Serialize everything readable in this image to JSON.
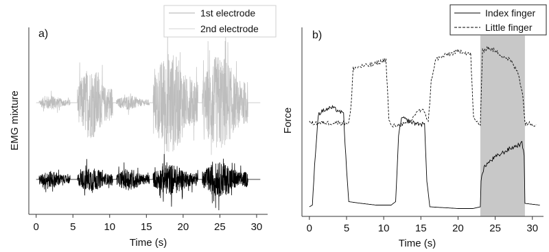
{
  "chart_data": [
    {
      "type": "line",
      "panel_label": "a)",
      "xlabel": "Time (s)",
      "ylabel": "EMG mixture",
      "xlim": [
        -1,
        31.5
      ],
      "xticks": [
        0,
        5,
        10,
        15,
        20,
        25,
        30
      ],
      "grid": false,
      "legend": {
        "placement": "top-right",
        "entries": [
          "1st electrode",
          "2nd electrode"
        ]
      },
      "series": [
        {
          "name": "1st electrode",
          "color": "#bdbdbd",
          "baseline": "upper",
          "segments": [
            {
              "start": 0.4,
              "end": 4.6,
              "amplitude": 0.12
            },
            {
              "start": 5.6,
              "end": 10.4,
              "amplitude": 0.6
            },
            {
              "start": 10.9,
              "end": 15.4,
              "amplitude": 0.12
            },
            {
              "start": 15.9,
              "end": 22.0,
              "amplitude": 0.85
            },
            {
              "start": 22.6,
              "end": 28.8,
              "amplitude": 0.8
            }
          ]
        },
        {
          "name": "2nd electrode",
          "color": "#000000",
          "baseline": "lower",
          "segments": [
            {
              "start": 0.4,
              "end": 4.6,
              "amplitude": 0.25
            },
            {
              "start": 5.6,
              "end": 10.4,
              "amplitude": 0.35
            },
            {
              "start": 10.9,
              "end": 15.4,
              "amplitude": 0.32
            },
            {
              "start": 15.9,
              "end": 22.0,
              "amplitude": 0.45
            },
            {
              "start": 22.6,
              "end": 28.8,
              "amplitude": 0.5
            }
          ]
        }
      ]
    },
    {
      "type": "line",
      "panel_label": "b)",
      "xlabel": "Time (s)",
      "ylabel": "Force",
      "xlim": [
        -1,
        31.5
      ],
      "ylim": [
        0,
        1
      ],
      "xticks": [
        0,
        5,
        10,
        15,
        20,
        25,
        30
      ],
      "grid": false,
      "legend": {
        "placement": "top-right",
        "entries": [
          "Index finger",
          "Little finger"
        ]
      },
      "highlight": {
        "start": 23,
        "end": 29,
        "color": "#c8c8c8"
      },
      "series": [
        {
          "name": "Index finger",
          "color": "#000000",
          "dash": "solid",
          "points": [
            [
              0,
              0.04
            ],
            [
              0.4,
              0.05
            ],
            [
              0.8,
              0.35
            ],
            [
              1.2,
              0.58
            ],
            [
              1.8,
              0.6
            ],
            [
              3.0,
              0.62
            ],
            [
              4.0,
              0.6
            ],
            [
              4.6,
              0.58
            ],
            [
              5.0,
              0.25
            ],
            [
              5.3,
              0.07
            ],
            [
              7,
              0.06
            ],
            [
              9,
              0.05
            ],
            [
              11,
              0.05
            ],
            [
              11.6,
              0.07
            ],
            [
              12.0,
              0.45
            ],
            [
              12.4,
              0.56
            ],
            [
              14,
              0.53
            ],
            [
              15.5,
              0.52
            ],
            [
              15.8,
              0.2
            ],
            [
              16.2,
              0.04
            ],
            [
              20,
              0.03
            ],
            [
              22,
              0.03
            ],
            [
              23.0,
              0.04
            ],
            [
              23.1,
              0.2
            ],
            [
              23.6,
              0.28
            ],
            [
              25,
              0.33
            ],
            [
              27,
              0.38
            ],
            [
              28.6,
              0.41
            ],
            [
              28.9,
              0.35
            ],
            [
              29.0,
              0.06
            ],
            [
              31,
              0.05
            ]
          ]
        },
        {
          "name": "Little finger",
          "color": "#000000",
          "dash": "dashed",
          "points": [
            [
              0,
              0.53
            ],
            [
              5.3,
              0.53
            ],
            [
              5.6,
              0.62
            ],
            [
              5.9,
              0.85
            ],
            [
              7,
              0.86
            ],
            [
              8.5,
              0.87
            ],
            [
              10.3,
              0.9
            ],
            [
              10.7,
              0.55
            ],
            [
              11,
              0.51
            ],
            [
              13.5,
              0.53
            ],
            [
              14.5,
              0.6
            ],
            [
              15.5,
              0.6
            ],
            [
              16,
              0.53
            ],
            [
              16.4,
              0.78
            ],
            [
              17,
              0.9
            ],
            [
              18.5,
              0.93
            ],
            [
              20.5,
              0.95
            ],
            [
              21.7,
              0.93
            ],
            [
              22.1,
              0.55
            ],
            [
              23.0,
              0.52
            ],
            [
              23.3,
              0.95
            ],
            [
              24,
              0.97
            ],
            [
              25,
              0.95
            ],
            [
              26,
              0.92
            ],
            [
              27,
              0.9
            ],
            [
              28.1,
              0.82
            ],
            [
              28.7,
              0.7
            ],
            [
              29.0,
              0.53
            ],
            [
              30.5,
              0.52
            ]
          ]
        }
      ]
    }
  ]
}
